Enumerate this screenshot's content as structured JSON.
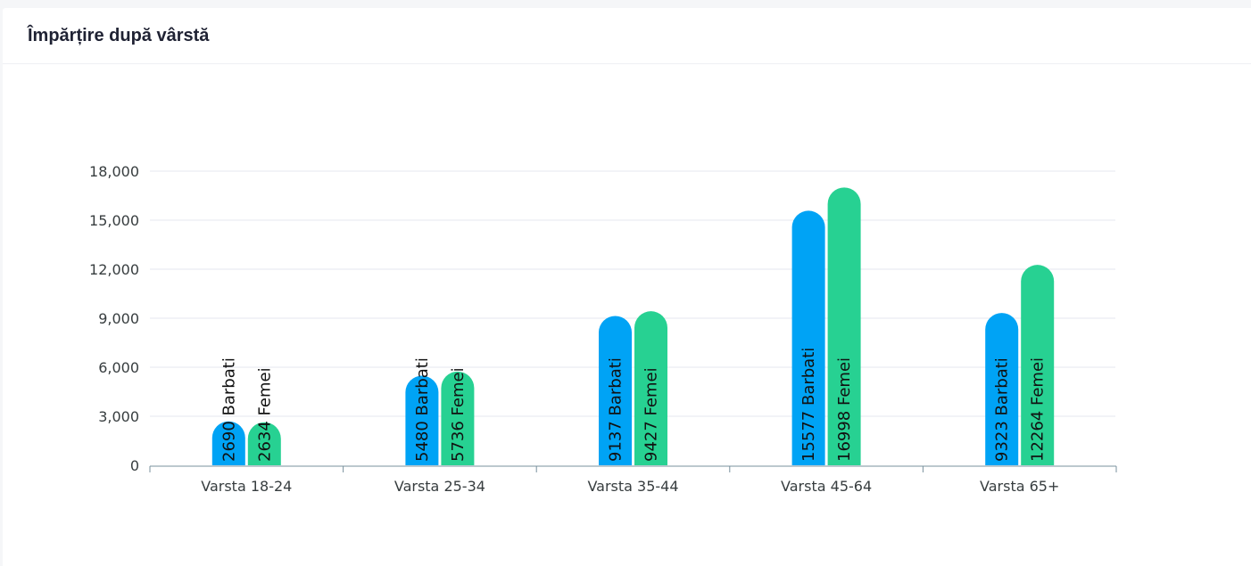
{
  "card": {
    "title": "Împărțire după vârstă"
  },
  "chart_data": {
    "type": "bar",
    "categories": [
      "Varsta 18-24",
      "Varsta 25-34",
      "Varsta 35-44",
      "Varsta 45-64",
      "Varsta 65+"
    ],
    "series": [
      {
        "name": "Barbati",
        "color": "#00a3f5",
        "values": [
          2690,
          5480,
          9137,
          15577,
          9323
        ],
        "labels": [
          "2690 Barbati",
          "5480 Barbati",
          "9137 Barbati",
          "15577 Barbati",
          "9323 Barbati"
        ]
      },
      {
        "name": "Femei",
        "color": "#27d192",
        "values": [
          2634,
          5736,
          9427,
          16998,
          12264
        ],
        "labels": [
          "2634 Femei",
          "5736 Femei",
          "9427 Femei",
          "16998 Femei",
          "12264 Femei"
        ]
      }
    ],
    "yticks": [
      "0",
      "3,000",
      "6,000",
      "9,000",
      "12,000",
      "15,000",
      "18,000"
    ],
    "ylim": [
      0,
      18000
    ],
    "grid": true,
    "grid_color": "#e4e7ef",
    "axis_color": "#78909c"
  }
}
